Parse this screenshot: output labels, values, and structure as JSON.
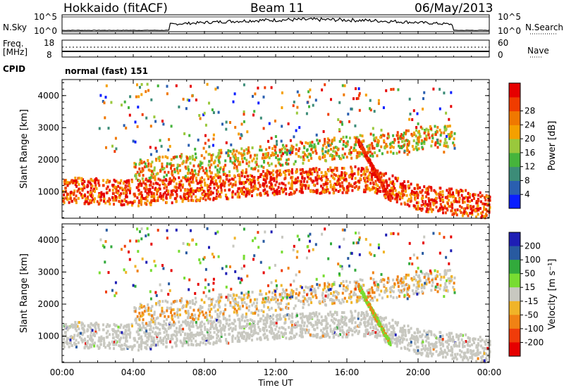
{
  "header": {
    "station": "Hokkaido (fitACF)",
    "beam": "Beam 11",
    "date": "06/May/2013"
  },
  "sky_panel": {
    "left_label": "N.Sky",
    "right_label": "N.Search",
    "left_ticks": [
      "10^5",
      "10^0"
    ],
    "right_ticks": [
      "10^5",
      "10^0"
    ]
  },
  "freq_panel": {
    "left_label_1": "Freq.",
    "left_label_2": "[MHz]",
    "right_label": "Nave",
    "left_ticks": [
      "18",
      "8"
    ],
    "right_ticks": [
      "60",
      "0"
    ]
  },
  "cpid": {
    "label": "CPID",
    "value": "normal (fast) 151"
  },
  "colors": {
    "power_scale": [
      "#0a1eff",
      "#2a5fb0",
      "#3c8c78",
      "#46b43c",
      "#9ac83c",
      "#f5a000",
      "#f07800",
      "#f03c00",
      "#e60000"
    ],
    "velocity_scale": [
      "#1e1eb4",
      "#285aa0",
      "#32aa3c",
      "#78dc32",
      "#c8c8c0",
      "#f0b428",
      "#f08214",
      "#f03c0a",
      "#e60000"
    ]
  },
  "chart_data": [
    {
      "type": "heatmap",
      "name": "power",
      "ylabel": "Slant Range [km]",
      "xlabel": "Time UT",
      "x_ticks": [
        "00:00",
        "04:00",
        "08:00",
        "12:00",
        "16:00",
        "20:00",
        "00:00"
      ],
      "y_ticks": [
        "1000",
        "2000",
        "3000",
        "4000"
      ],
      "ylim": [
        180,
        4500
      ],
      "colorbar": {
        "label": "Power [dB]",
        "ticks": [
          "4",
          "8",
          "12",
          "16",
          "20",
          "24",
          "28"
        ]
      }
    },
    {
      "type": "heatmap",
      "name": "velocity",
      "ylabel": "Slant Range [km]",
      "xlabel": "Time UT",
      "x_ticks": [
        "00:00",
        "04:00",
        "08:00",
        "12:00",
        "16:00",
        "20:00",
        "00:00"
      ],
      "y_ticks": [
        "1000",
        "2000",
        "3000",
        "4000"
      ],
      "ylim": [
        180,
        4500
      ],
      "colorbar": {
        "label": "Velocity [m s⁻¹]",
        "ticks": [
          "200",
          "100",
          "50",
          "15",
          "-15",
          "-50",
          "-100",
          "-200"
        ]
      }
    }
  ]
}
